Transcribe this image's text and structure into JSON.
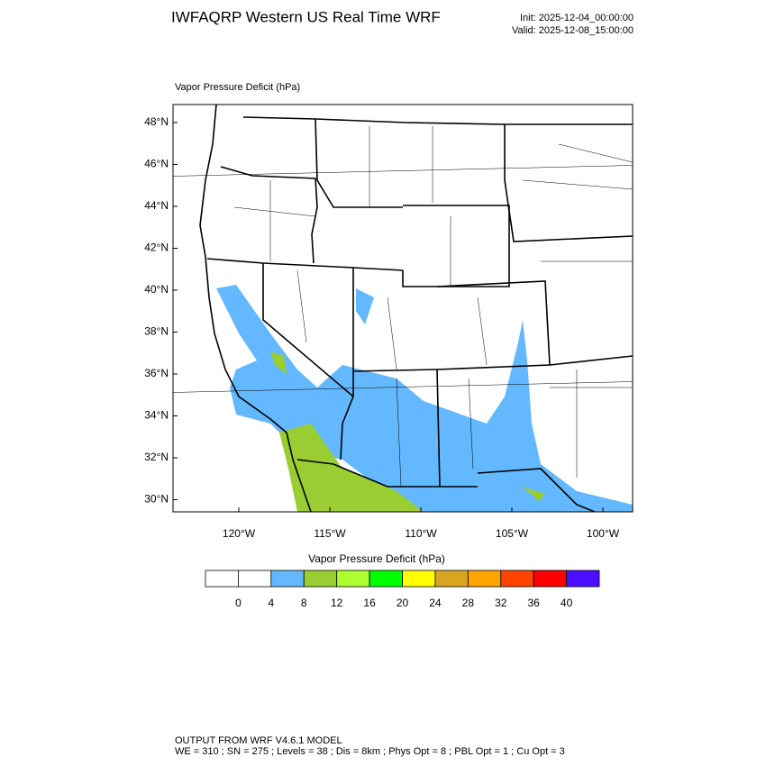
{
  "header": {
    "title": "IWFAQRP Western US Real Time WRF",
    "init": "Init: 2025-12-04_00:00:00",
    "valid": "Valid: 2025-12-08_15:00:00"
  },
  "map": {
    "label": "Vapor Pressure Deficit   (hPa)",
    "lat_ticks": [
      "48°N",
      "46°N",
      "44°N",
      "42°N",
      "40°N",
      "38°N",
      "36°N",
      "34°N",
      "32°N",
      "30°N"
    ],
    "lon_ticks": [
      "120°W",
      "115°W",
      "110°W",
      "105°W",
      "100°W"
    ]
  },
  "colorbar": {
    "title": "Vapor Pressure Deficit  (hPa)",
    "colors": [
      "#ffffff",
      "#ffffff",
      "#63b8ff",
      "#9acd32",
      "#adff2f",
      "#00ff00",
      "#ffff00",
      "#daa520",
      "#ffa500",
      "#ff4500",
      "#ff0000",
      "#4b0fff"
    ],
    "levels": [
      0,
      4,
      8,
      12,
      16,
      20,
      24,
      28,
      32,
      36,
      40
    ]
  },
  "footer": {
    "line1": "OUTPUT FROM WRF V4.6.1 MODEL",
    "line2": "WE = 310 ; SN = 275 ; Levels = 38 ; Dis = 8km ; Phys Opt = 8 ; PBL Opt = 1 ; Cu Opt = 3"
  }
}
